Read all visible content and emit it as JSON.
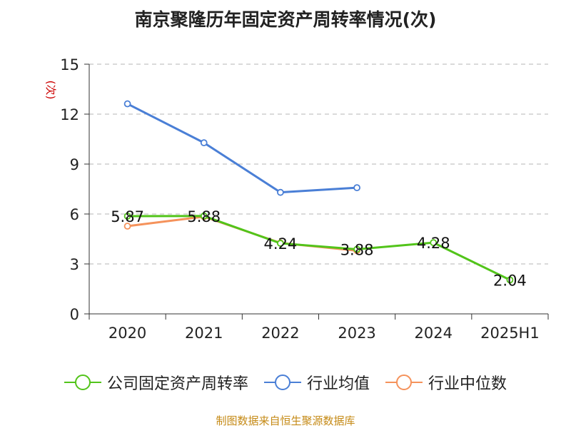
{
  "title": "南京聚隆历年固定资产周转率情况(次)",
  "source": "制图数据来自恒生聚源数据库",
  "colors": {
    "company": "#52c41a",
    "industry_avg": "#4a7fd6",
    "industry_median": "#f5925b",
    "ylabel": "#cc0000"
  },
  "chart_data": {
    "type": "line",
    "title": "南京聚隆历年固定资产周转率情况(次)",
    "xlabel": "",
    "ylabel": "(次)",
    "categories": [
      "2020",
      "2021",
      "2022",
      "2023",
      "2024",
      "2025H1"
    ],
    "ylim": [
      0,
      15
    ],
    "yticks": [
      0,
      3,
      6,
      9,
      12,
      15
    ],
    "grid": true,
    "legend_position": "bottom",
    "series": [
      {
        "name": "公司固定资产周转率",
        "values": [
          5.87,
          5.88,
          4.24,
          3.88,
          4.28,
          2.04
        ],
        "labels": [
          "5.87",
          "5.88",
          "4.24",
          "3.88",
          "4.28",
          "2.04"
        ]
      },
      {
        "name": "行业均值",
        "values": [
          12.62,
          10.28,
          7.3,
          7.58,
          null,
          null
        ]
      },
      {
        "name": "行业中位数",
        "values": [
          5.27,
          5.84,
          4.26,
          3.8,
          null,
          null
        ]
      }
    ]
  }
}
